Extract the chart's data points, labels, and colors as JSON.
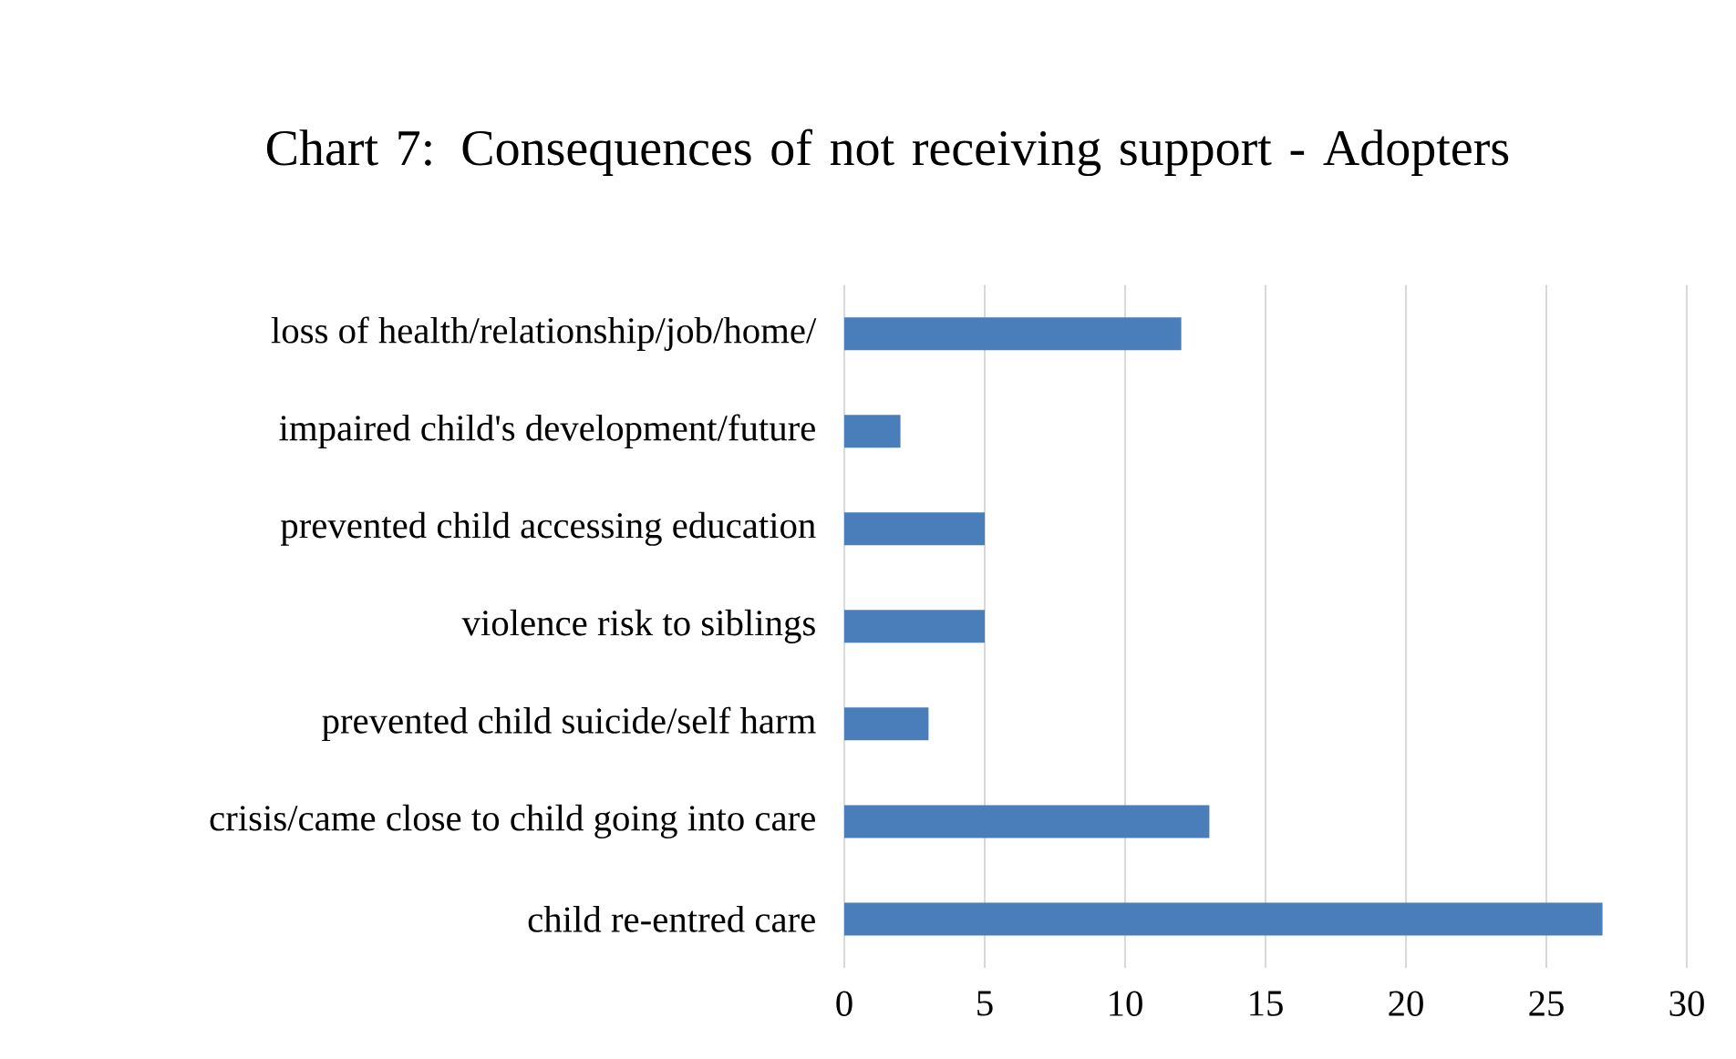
{
  "chart_data": {
    "type": "bar",
    "orientation": "horizontal",
    "title": "Chart 7: Consequences of not receiving support - Adopters",
    "categories": [
      "loss of health/relationship/job/home/",
      "impaired child's development/future",
      "prevented child accessing education",
      "violence risk to siblings",
      "prevented child suicide/self harm",
      "crisis/came close to child going into care",
      "child re-entred care"
    ],
    "values": [
      12,
      2,
      5,
      5,
      3,
      13,
      27
    ],
    "color": "#4a7ebb",
    "xlim": [
      0,
      30
    ],
    "xticks": [
      0,
      5,
      10,
      15,
      20,
      25,
      30
    ],
    "grid": "x"
  }
}
